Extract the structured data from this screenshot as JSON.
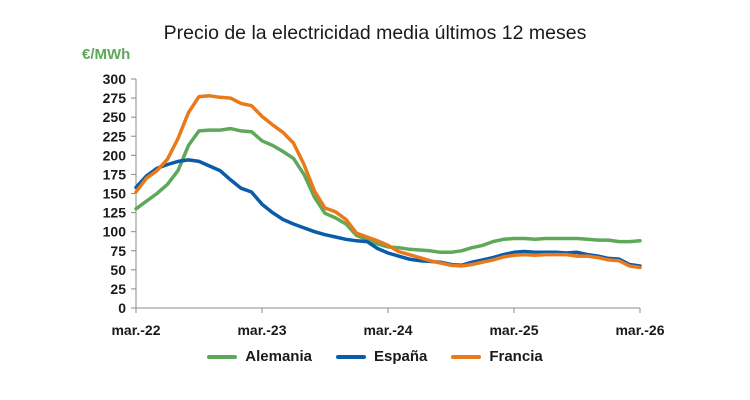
{
  "chart_data": {
    "type": "line",
    "title": "Precio de la electricidad media últimos 12 meses",
    "ylabel": "€/MWh",
    "xlabel": "",
    "ylim": [
      0,
      300
    ],
    "yticks": [
      0,
      25,
      50,
      75,
      100,
      125,
      150,
      175,
      200,
      225,
      250,
      275,
      300
    ],
    "xlim": [
      "2022-03",
      "2026-03"
    ],
    "xticks": [
      "mar.-22",
      "mar.-23",
      "mar.-24",
      "mar.-25",
      "mar.-26"
    ],
    "grid": false,
    "legend_position": "bottom",
    "x": [
      "2022-03",
      "2022-04",
      "2022-05",
      "2022-06",
      "2022-07",
      "2022-08",
      "2022-09",
      "2022-10",
      "2022-11",
      "2022-12",
      "2023-01",
      "2023-02",
      "2023-03",
      "2023-04",
      "2023-05",
      "2023-06",
      "2023-07",
      "2023-08",
      "2023-09",
      "2023-10",
      "2023-11",
      "2023-12",
      "2024-01",
      "2024-02",
      "2024-03",
      "2024-04",
      "2024-05",
      "2024-06",
      "2024-07",
      "2024-08",
      "2024-09",
      "2024-10",
      "2024-11",
      "2024-12",
      "2025-01",
      "2025-02",
      "2025-03",
      "2025-04",
      "2025-05",
      "2025-06",
      "2025-07",
      "2025-08",
      "2025-09",
      "2025-10",
      "2025-11",
      "2025-12",
      "2026-01",
      "2026-02",
      "2026-03"
    ],
    "series": [
      {
        "name": "Alemania",
        "color": "#5ea85a",
        "values": [
          130,
          140,
          150,
          162,
          180,
          213,
          232,
          233,
          233,
          235,
          232,
          231,
          219,
          213,
          205,
          196,
          175,
          145,
          124,
          118,
          110,
          95,
          90,
          84,
          80,
          79,
          77,
          76,
          75,
          73,
          73,
          75,
          79,
          82,
          87,
          90,
          91,
          91,
          90,
          91,
          91,
          91,
          91,
          90,
          89,
          89,
          87,
          87,
          88
        ]
      },
      {
        "name": "España",
        "color": "#0a5cab",
        "values": [
          158,
          173,
          183,
          188,
          192,
          194,
          192,
          186,
          180,
          168,
          157,
          152,
          136,
          125,
          116,
          110,
          105,
          100,
          96,
          93,
          90,
          88,
          87,
          78,
          72,
          68,
          64,
          62,
          61,
          60,
          57,
          56,
          60,
          63,
          66,
          70,
          73,
          74,
          73,
          73,
          73,
          72,
          73,
          70,
          68,
          65,
          64,
          57,
          55
        ]
      },
      {
        "name": "Francia",
        "color": "#e87a1c",
        "values": [
          152,
          170,
          180,
          195,
          222,
          256,
          277,
          278,
          276,
          275,
          268,
          265,
          251,
          240,
          230,
          216,
          188,
          153,
          131,
          126,
          116,
          98,
          93,
          88,
          82,
          74,
          70,
          66,
          62,
          59,
          56,
          55,
          57,
          60,
          63,
          67,
          69,
          70,
          69,
          70,
          70,
          70,
          68,
          68,
          66,
          63,
          62,
          55,
          53
        ]
      }
    ]
  }
}
